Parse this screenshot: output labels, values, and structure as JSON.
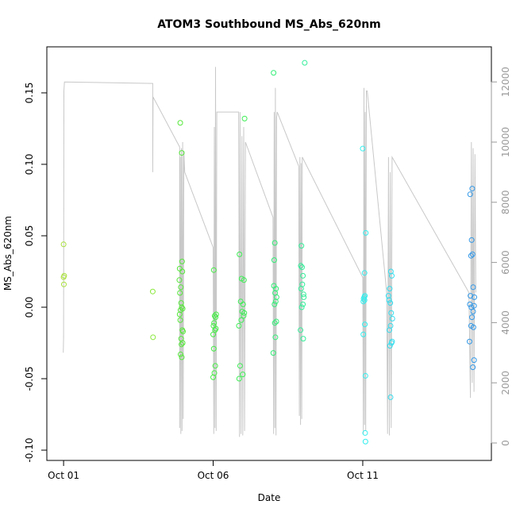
{
  "chart_data": {
    "type": "scatter",
    "title": "ATOM3 Southbound MS_Abs_620nm",
    "x_label": "Date",
    "y_label": "MS_Abs_620nm",
    "xlim": [
      0.44,
      15.3
    ],
    "xticks": [
      {
        "value": 1,
        "label": "Oct 01"
      },
      {
        "value": 6,
        "label": "Oct 06"
      },
      {
        "value": 11,
        "label": "Oct 11"
      }
    ],
    "ylim": [
      -0.1072,
      0.1822
    ],
    "yticks": [
      {
        "value": -0.1,
        "label": "-0.10"
      },
      {
        "value": -0.05,
        "label": "-0.05"
      },
      {
        "value": 0,
        "label": "0.00"
      },
      {
        "value": 0.05,
        "label": "0.05"
      },
      {
        "value": 0.1,
        "label": "0.10"
      },
      {
        "value": 0.15,
        "label": "0.15"
      }
    ],
    "y2lim": [
      -580,
      13166
    ],
    "y2ticks": [
      0,
      2000,
      4000,
      6000,
      8000,
      10000,
      12000
    ],
    "series": [
      {
        "color": "#A8E03A",
        "x": [
          1.0,
          1.02,
          1.0,
          1.01
        ],
        "values": [
          0.044,
          0.022,
          0.021,
          0.016
        ]
      },
      {
        "color": "#88E83A",
        "x": [
          3.98,
          3.99
        ],
        "values": [
          0.011,
          -0.021
        ]
      },
      {
        "color": "#55E83A",
        "x": [
          4.9,
          4.95,
          4.96,
          4.88,
          4.97,
          4.87,
          4.92,
          4.89,
          4.93,
          4.95,
          4.98,
          4.91,
          4.88,
          4.9,
          4.97,
          4.99,
          4.93,
          4.98,
          4.94,
          4.91,
          4.95
        ],
        "values": [
          0.129,
          0.108,
          0.032,
          0.027,
          0.025,
          0.019,
          0.014,
          0.01,
          0.003,
          0.0,
          -0.001,
          -0.002,
          -0.005,
          -0.009,
          -0.016,
          -0.017,
          -0.022,
          -0.025,
          -0.026,
          -0.033,
          -0.035
        ]
      },
      {
        "color": "#44EE44",
        "x": [
          6.02,
          6.1,
          6.05,
          6.08,
          6.03,
          6.01,
          6.09,
          6.06,
          6.0,
          6.02,
          6.07,
          6.04,
          6.0
        ],
        "values": [
          0.026,
          -0.005,
          -0.006,
          -0.007,
          -0.011,
          -0.013,
          -0.015,
          -0.016,
          -0.019,
          -0.029,
          -0.041,
          -0.046,
          -0.049
        ]
      },
      {
        "color": "#3DEE55",
        "x": [
          7.05,
          6.88,
          6.95,
          7.03,
          6.92,
          7.0,
          6.97,
          7.04,
          7.02,
          6.94,
          6.86,
          6.9,
          6.99,
          6.87
        ],
        "values": [
          0.132,
          0.037,
          0.02,
          0.019,
          0.004,
          0.002,
          -0.003,
          -0.004,
          -0.006,
          -0.009,
          -0.013,
          -0.041,
          -0.047,
          -0.05
        ]
      },
      {
        "color": "#33EE77",
        "x": [
          8.02,
          8.06,
          8.04,
          8.03,
          8.1,
          8.07,
          8.12,
          8.09,
          8.05,
          8.11,
          8.06,
          8.08,
          8.01
        ],
        "values": [
          0.164,
          0.045,
          0.033,
          0.015,
          0.013,
          0.01,
          0.007,
          0.004,
          0.002,
          -0.01,
          -0.011,
          -0.021,
          -0.032
        ]
      },
      {
        "color": "#33EE99",
        "x": [
          9.06,
          8.95,
          8.93,
          8.97,
          9.0,
          8.98,
          8.94,
          9.02,
          9.03,
          9.0,
          8.96,
          8.92,
          9.01
        ],
        "values": [
          0.171,
          0.043,
          0.029,
          0.028,
          0.022,
          0.016,
          0.013,
          0.009,
          0.007,
          0.002,
          0.0,
          -0.016,
          -0.022
        ]
      },
      {
        "color": "#33EEEE",
        "x": [
          11.0,
          11.1,
          11.06,
          11.07,
          11.05,
          11.03,
          11.06,
          11.02,
          11.07,
          11.02,
          11.09,
          11.08,
          11.09
        ],
        "values": [
          0.111,
          0.052,
          0.024,
          0.008,
          0.007,
          0.006,
          0.005,
          0.004,
          -0.012,
          -0.019,
          -0.048,
          -0.088,
          -0.094
        ]
      },
      {
        "color": "#33DDEE",
        "x": [
          11.94,
          11.97,
          11.9,
          11.86,
          11.88,
          11.92,
          11.95,
          11.99,
          11.93,
          11.89,
          11.98,
          11.91,
          11.96,
          11.93
        ],
        "values": [
          0.025,
          0.022,
          0.013,
          0.008,
          0.005,
          0.003,
          -0.004,
          -0.008,
          -0.013,
          -0.016,
          -0.024,
          -0.027,
          -0.025,
          -0.063
        ]
      },
      {
        "color": "#3399E8",
        "x": [
          14.66,
          14.59,
          14.64,
          14.67,
          14.62,
          14.69,
          14.6,
          14.73,
          14.58,
          14.72,
          14.63,
          14.69,
          14.65,
          14.62,
          14.7,
          14.57,
          14.72,
          14.68
        ],
        "values": [
          0.083,
          0.079,
          0.047,
          0.037,
          0.036,
          0.014,
          0.008,
          0.007,
          0.002,
          0.001,
          0.0,
          -0.003,
          -0.007,
          -0.013,
          -0.014,
          -0.024,
          -0.037,
          -0.042
        ]
      }
    ],
    "line": {
      "color": "#c8c8c8",
      "axis": "y2",
      "x": [
        0.99,
        1.0,
        1.01,
        1.03,
        3.98,
        3.98,
        3.99,
        4.88,
        4.88,
        4.9,
        4.92,
        4.94,
        4.96,
        4.98,
        5.0,
        5.02,
        5.05,
        6.0,
        6.02,
        6.04,
        6.06,
        6.08,
        6.1,
        6.12,
        6.15,
        6.85,
        6.88,
        6.9,
        6.93,
        6.96,
        6.99,
        7.02,
        7.05,
        7.08,
        8.0,
        8.02,
        8.04,
        8.06,
        8.08,
        8.1,
        8.12,
        8.14,
        8.86,
        8.88,
        8.9,
        8.92,
        8.94,
        8.96,
        8.98,
        11.0,
        11.02,
        11.04,
        11.06,
        11.08,
        11.1,
        11.12,
        11.15,
        11.8,
        11.83,
        11.86,
        11.89,
        11.92,
        11.95,
        11.98,
        14.55,
        14.6,
        14.63,
        14.66,
        14.69,
        14.72,
        14.75,
        14.78
      ],
      "values": [
        3000,
        3500,
        11700,
        12000,
        11950,
        9000,
        11500,
        9840,
        500,
        9500,
        300,
        9800,
        400,
        10000,
        800,
        9700,
        9000,
        6500,
        300,
        10500,
        500,
        12500,
        400,
        11000,
        11000,
        11000,
        200,
        11000,
        300,
        10200,
        250,
        10500,
        400,
        10000,
        7500,
        300,
        11000,
        500,
        11800,
        250,
        10800,
        11000,
        9200,
        900,
        9500,
        600,
        9300,
        800,
        9500,
        5500,
        300,
        11800,
        600,
        11000,
        400,
        11700,
        11700,
        5000,
        300,
        9500,
        250,
        9000,
        500,
        9500,
        5000,
        1500,
        10000,
        2000,
        9800,
        1700,
        9600,
        5000
      ]
    }
  }
}
